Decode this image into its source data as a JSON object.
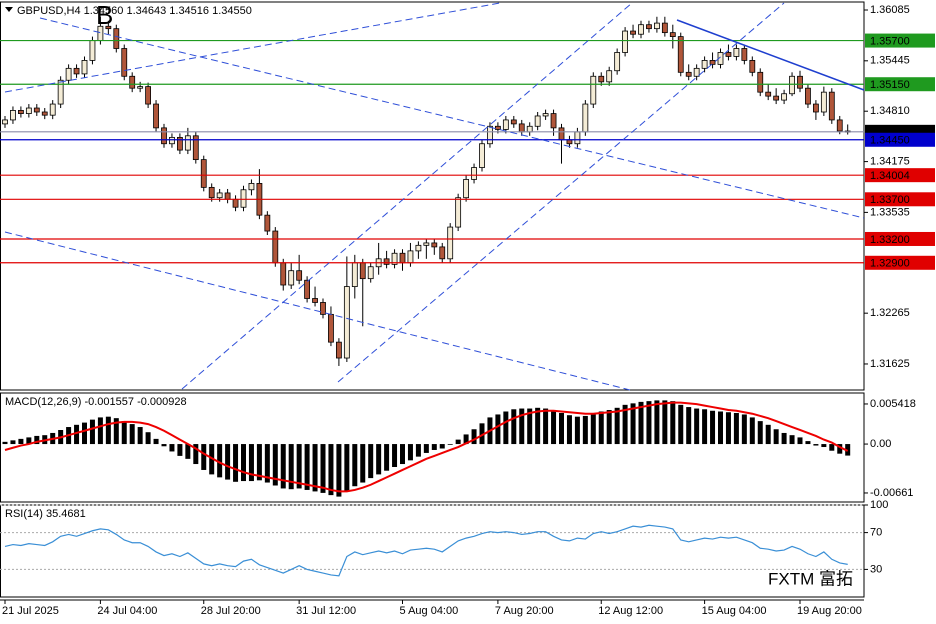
{
  "chart_data": [
    {
      "type": "candlestick",
      "title": "GBPUSD,H4 1.34560 1.34643 1.34516 1.34550",
      "annotation": "B",
      "watermark": "FXTM 富拓",
      "up_color": "#f4ecd6",
      "down_color": "#b0563a",
      "ylim": [
        1.31297,
        1.36186
      ],
      "yticks": [
        1.36085,
        1.35445,
        {
          "value": 1.3481,
          "label": "1.34810"
        },
        1.34175,
        1.33535,
        1.32265,
        1.31625
      ],
      "levels": [
        {
          "value": 1.357,
          "label": "1.35700",
          "color": "#1f9a1f"
        },
        {
          "value": 1.3515,
          "label": "1.35150",
          "color": "#1f9a1f"
        },
        {
          "value": 1.3455,
          "label": "1.34550",
          "color": "#000000"
        },
        {
          "value": 1.3445,
          "label": "1.34450",
          "color": "#0000cc"
        },
        {
          "value": 1.34004,
          "label": "1.34004",
          "color": "#e00000"
        },
        {
          "value": 1.337,
          "label": "1.33700",
          "color": "#e00000"
        },
        {
          "value": 1.332,
          "label": "1.33200",
          "color": "#e00000"
        },
        {
          "value": 1.329,
          "label": "1.32900",
          "color": "#e00000"
        }
      ],
      "xticks": [
        {
          "value": 0,
          "label": "21 Jul 2025"
        },
        {
          "value": 12,
          "label": "24 Jul 04:00"
        },
        {
          "value": 25,
          "label": "28 Jul 20:00"
        },
        {
          "value": 37,
          "label": "31 Jul 12:00"
        },
        {
          "value": 50,
          "label": "5 Aug 04:00"
        },
        {
          "value": 62,
          "label": "7 Aug 20:00"
        },
        {
          "value": 75,
          "label": "12 Aug 12:00"
        },
        {
          "value": 88,
          "label": "15 Aug 04:00"
        },
        {
          "value": 100,
          "label": "19 Aug 20:00"
        }
      ],
      "ohlc": [
        [
          1.3465,
          1.3475,
          1.346,
          1.347
        ],
        [
          1.347,
          1.3487,
          1.3465,
          1.3482
        ],
        [
          1.3482,
          1.3487,
          1.3473,
          1.3478
        ],
        [
          1.3478,
          1.349,
          1.3473,
          1.3485
        ],
        [
          1.3485,
          1.349,
          1.3475,
          1.348
        ],
        [
          1.348,
          1.3485,
          1.3471,
          1.3476
        ],
        [
          1.3476,
          1.3495,
          1.3471,
          1.349
        ],
        [
          1.349,
          1.3525,
          1.3485,
          1.352
        ],
        [
          1.352,
          1.354,
          1.3515,
          1.3535
        ],
        [
          1.3535,
          1.354,
          1.3523,
          1.3528
        ],
        [
          1.3528,
          1.355,
          1.3523,
          1.3545
        ],
        [
          1.3545,
          1.3575,
          1.354,
          1.357
        ],
        [
          1.357,
          1.36,
          1.3565,
          1.3588
        ],
        [
          1.3588,
          1.3595,
          1.3578,
          1.3585
        ],
        [
          1.3585,
          1.359,
          1.3555,
          1.356
        ],
        [
          1.356,
          1.3565,
          1.352,
          1.3525
        ],
        [
          1.3525,
          1.353,
          1.3505,
          1.351
        ],
        [
          1.351,
          1.3518,
          1.3505,
          1.3512
        ],
        [
          1.3512,
          1.3517,
          1.3485,
          1.349
        ],
        [
          1.349,
          1.3495,
          1.3455,
          1.346
        ],
        [
          1.346,
          1.3465,
          1.3435,
          1.344
        ],
        [
          1.344,
          1.3453,
          1.3435,
          1.3448
        ],
        [
          1.3448,
          1.3453,
          1.3427,
          1.3432
        ],
        [
          1.3432,
          1.346,
          1.3427,
          1.345
        ],
        [
          1.345,
          1.3455,
          1.3415,
          1.342
        ],
        [
          1.342,
          1.3425,
          1.338,
          1.3385
        ],
        [
          1.3385,
          1.339,
          1.3367,
          1.3372
        ],
        [
          1.3372,
          1.3383,
          1.3367,
          1.3378
        ],
        [
          1.3378,
          1.3383,
          1.3365,
          1.337
        ],
        [
          1.337,
          1.3375,
          1.3355,
          1.336
        ],
        [
          1.336,
          1.3387,
          1.3355,
          1.3382
        ],
        [
          1.3382,
          1.3395,
          1.3375,
          1.339
        ],
        [
          1.339,
          1.3408,
          1.3345,
          1.335
        ],
        [
          1.335,
          1.3355,
          1.3325,
          1.333
        ],
        [
          1.333,
          1.3335,
          1.3285,
          1.329
        ],
        [
          1.329,
          1.3295,
          1.3255,
          1.3262
        ],
        [
          1.3262,
          1.329,
          1.3257,
          1.328
        ],
        [
          1.328,
          1.33,
          1.3263,
          1.3268
        ],
        [
          1.3268,
          1.3273,
          1.324,
          1.3245
        ],
        [
          1.3245,
          1.326,
          1.3235,
          1.324
        ],
        [
          1.324,
          1.3245,
          1.322,
          1.3225
        ],
        [
          1.3225,
          1.3235,
          1.3185,
          1.319
        ],
        [
          1.319,
          1.3195,
          1.316,
          1.317
        ],
        [
          1.317,
          1.3298,
          1.3165,
          1.326
        ],
        [
          1.326,
          1.33,
          1.3245,
          1.329
        ],
        [
          1.329,
          1.3295,
          1.321,
          1.327
        ],
        [
          1.327,
          1.329,
          1.3265,
          1.3285
        ],
        [
          1.3285,
          1.3315,
          1.3275,
          1.3295
        ],
        [
          1.3295,
          1.3305,
          1.3283,
          1.3288
        ],
        [
          1.3288,
          1.3307,
          1.3283,
          1.3302
        ],
        [
          1.3302,
          1.3307,
          1.328,
          1.329
        ],
        [
          1.329,
          1.3315,
          1.3285,
          1.3305
        ],
        [
          1.3305,
          1.3317,
          1.3295,
          1.3312
        ],
        [
          1.3312,
          1.332,
          1.3295,
          1.3315
        ],
        [
          1.3315,
          1.332,
          1.33,
          1.331
        ],
        [
          1.331,
          1.3315,
          1.329,
          1.3295
        ],
        [
          1.3295,
          1.334,
          1.329,
          1.3335
        ],
        [
          1.3335,
          1.3377,
          1.333,
          1.3372
        ],
        [
          1.3372,
          1.34,
          1.3367,
          1.3395
        ],
        [
          1.3395,
          1.3415,
          1.339,
          1.341
        ],
        [
          1.341,
          1.3445,
          1.3405,
          1.344
        ],
        [
          1.344,
          1.3467,
          1.3435,
          1.3462
        ],
        [
          1.3462,
          1.3467,
          1.3453,
          1.3458
        ],
        [
          1.3458,
          1.3475,
          1.3453,
          1.347
        ],
        [
          1.347,
          1.3475,
          1.346,
          1.3465
        ],
        [
          1.3465,
          1.347,
          1.345,
          1.3455
        ],
        [
          1.3455,
          1.3467,
          1.345,
          1.3462
        ],
        [
          1.3462,
          1.348,
          1.3457,
          1.3475
        ],
        [
          1.3475,
          1.3483,
          1.347,
          1.3478
        ],
        [
          1.3478,
          1.3483,
          1.345,
          1.346
        ],
        [
          1.346,
          1.3465,
          1.3415,
          1.3445
        ],
        [
          1.3445,
          1.345,
          1.3435,
          1.344
        ],
        [
          1.344,
          1.346,
          1.3435,
          1.3455
        ],
        [
          1.3455,
          1.3495,
          1.345,
          1.349
        ],
        [
          1.349,
          1.353,
          1.3485,
          1.3525
        ],
        [
          1.3525,
          1.353,
          1.3513,
          1.3518
        ],
        [
          1.3518,
          1.3537,
          1.3513,
          1.3532
        ],
        [
          1.3532,
          1.356,
          1.3527,
          1.3555
        ],
        [
          1.3555,
          1.3587,
          1.355,
          1.3582
        ],
        [
          1.3582,
          1.359,
          1.3573,
          1.3578
        ],
        [
          1.3578,
          1.3595,
          1.3573,
          1.359
        ],
        [
          1.359,
          1.3595,
          1.358,
          1.3585
        ],
        [
          1.3585,
          1.36,
          1.358,
          1.3592
        ],
        [
          1.3592,
          1.36,
          1.3575,
          1.358
        ],
        [
          1.358,
          1.359,
          1.356,
          1.3575
        ],
        [
          1.3575,
          1.358,
          1.3525,
          1.353
        ],
        [
          1.353,
          1.354,
          1.352,
          1.3525
        ],
        [
          1.3525,
          1.354,
          1.352,
          1.3535
        ],
        [
          1.3535,
          1.355,
          1.353,
          1.3545
        ],
        [
          1.3545,
          1.3555,
          1.3535,
          1.354
        ],
        [
          1.354,
          1.356,
          1.3535,
          1.3555
        ],
        [
          1.3555,
          1.3565,
          1.3545,
          1.355
        ],
        [
          1.355,
          1.3565,
          1.3545,
          1.356
        ],
        [
          1.356,
          1.3565,
          1.354,
          1.3545
        ],
        [
          1.3545,
          1.355,
          1.3525,
          1.353
        ],
        [
          1.353,
          1.3535,
          1.35,
          1.3505
        ],
        [
          1.3505,
          1.3515,
          1.3495,
          1.35
        ],
        [
          1.35,
          1.351,
          1.349,
          1.3495
        ],
        [
          1.3495,
          1.3508,
          1.349,
          1.3503
        ],
        [
          1.3503,
          1.353,
          1.35,
          1.3525
        ],
        [
          1.3525,
          1.3532,
          1.3505,
          1.351
        ],
        [
          1.351,
          1.3515,
          1.3485,
          1.349
        ],
        [
          1.349,
          1.3495,
          1.347,
          1.348
        ],
        [
          1.348,
          1.3512,
          1.3475,
          1.3505
        ],
        [
          1.3505,
          1.351,
          1.3465,
          1.347
        ],
        [
          1.347,
          1.3475,
          1.3452,
          1.3456
        ],
        [
          1.3456,
          1.34643,
          1.34516,
          1.3455
        ]
      ]
    },
    {
      "type": "macd",
      "title": "MACD(12,26,9) -0.001557 -0.000928",
      "color": "#000000",
      "signal_color": "#ee0000",
      "ylim": [
        -0.00783,
        0.0069
      ],
      "yticks": [
        0.005418,
        {
          "value": 0,
          "label": "0.00"
        },
        -0.00661
      ],
      "values": [
        0.0003,
        0.0005,
        0.0007,
        0.0009,
        0.0011,
        0.0012,
        0.0015,
        0.0019,
        0.0023,
        0.0026,
        0.0029,
        0.0033,
        0.0036,
        0.0037,
        0.0035,
        0.0031,
        0.0027,
        0.0023,
        0.0016,
        0.0007,
        -0.0003,
        -0.001,
        -0.0016,
        -0.002,
        -0.0027,
        -0.0035,
        -0.0041,
        -0.0045,
        -0.0048,
        -0.0051,
        -0.005,
        -0.005,
        -0.0049,
        -0.0052,
        -0.0056,
        -0.006,
        -0.0061,
        -0.006,
        -0.0062,
        -0.0064,
        -0.0066,
        -0.0069,
        -0.0071,
        -0.0064,
        -0.0057,
        -0.0052,
        -0.0046,
        -0.0041,
        -0.0036,
        -0.0031,
        -0.0027,
        -0.0022,
        -0.0017,
        -0.0012,
        -0.0008,
        -0.0006,
        -0.0001,
        0.0006,
        0.0013,
        0.002,
        0.0028,
        0.0036,
        0.004,
        0.0044,
        0.0047,
        0.0048,
        0.0048,
        0.0049,
        0.0048,
        0.0046,
        0.0042,
        0.0039,
        0.0037,
        0.0038,
        0.0041,
        0.0044,
        0.0046,
        0.0049,
        0.0053,
        0.0055,
        0.0057,
        0.0058,
        0.0059,
        0.0059,
        0.0058,
        0.0053,
        0.005,
        0.0048,
        0.0047,
        0.0045,
        0.0044,
        0.0043,
        0.0042,
        0.004,
        0.0036,
        0.0031,
        0.0026,
        0.002,
        0.0015,
        0.0012,
        0.0009,
        0.0004,
        -0.0002,
        -0.0004,
        -0.0009,
        -0.0013,
        -0.001557
      ],
      "signal": [
        -0.0008,
        -0.0005,
        -0.0002,
        0.0,
        0.0003,
        0.0005,
        0.0007,
        0.0009,
        0.0012,
        0.0015,
        0.0018,
        0.0021,
        0.0024,
        0.0027,
        0.0029,
        0.003,
        0.003,
        0.0029,
        0.0027,
        0.0023,
        0.0018,
        0.0012,
        0.0006,
        0.0,
        -0.0006,
        -0.0013,
        -0.0019,
        -0.0025,
        -0.003,
        -0.0034,
        -0.0038,
        -0.0041,
        -0.0043,
        -0.0045,
        -0.0047,
        -0.0049,
        -0.0051,
        -0.0053,
        -0.0055,
        -0.0057,
        -0.0059,
        -0.0062,
        -0.0064,
        -0.0064,
        -0.0062,
        -0.0059,
        -0.0055,
        -0.005,
        -0.0045,
        -0.004,
        -0.0035,
        -0.003,
        -0.0025,
        -0.002,
        -0.0016,
        -0.0012,
        -0.0008,
        -0.0004,
        0.0001,
        0.0006,
        0.0012,
        0.0018,
        0.0024,
        0.003,
        0.0035,
        0.0039,
        0.0042,
        0.0044,
        0.0045,
        0.0045,
        0.0044,
        0.0043,
        0.0042,
        0.0041,
        0.0041,
        0.0042,
        0.0043,
        0.0044,
        0.0046,
        0.0048,
        0.005,
        0.0052,
        0.0054,
        0.0055,
        0.0056,
        0.0056,
        0.0055,
        0.0054,
        0.0052,
        0.005,
        0.0048,
        0.0046,
        0.0045,
        0.0043,
        0.0041,
        0.0038,
        0.0035,
        0.0031,
        0.0027,
        0.0023,
        0.0019,
        0.0015,
        0.0011,
        0.0006,
        0.0002,
        -0.0004,
        -0.000928
      ]
    },
    {
      "type": "line",
      "title": "RSI(14) 35.4681",
      "color": "#3a8fd6",
      "grid": true,
      "ylim": [
        0,
        100
      ],
      "yticks": [
        100,
        70,
        30
      ],
      "values": [
        55,
        57,
        56,
        58,
        57,
        56,
        60,
        66,
        68,
        66,
        69,
        72,
        74,
        73,
        68,
        62,
        59,
        59,
        55,
        49,
        45,
        47,
        44,
        48,
        42,
        36,
        34,
        36,
        34,
        33,
        39,
        41,
        35,
        32,
        29,
        26,
        30,
        34,
        30,
        28,
        26,
        24,
        23,
        44,
        49,
        46,
        48,
        50,
        48,
        50,
        47,
        51,
        52,
        53,
        52,
        49,
        55,
        61,
        64,
        66,
        69,
        71,
        70,
        71,
        70,
        68,
        69,
        71,
        71,
        66,
        62,
        61,
        64,
        63,
        69,
        71,
        69,
        71,
        74,
        77,
        76,
        78,
        77,
        76,
        74,
        62,
        60,
        62,
        64,
        63,
        65,
        64,
        65,
        62,
        59,
        53,
        52,
        50,
        51,
        55,
        52,
        47,
        44,
        49,
        41,
        37,
        35.4681
      ]
    }
  ]
}
